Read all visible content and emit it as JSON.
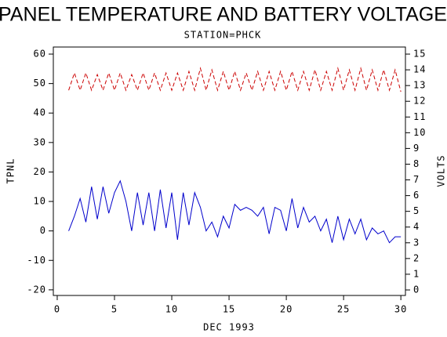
{
  "chart_data": {
    "type": "line",
    "title": "PANEL TEMPERATURE AND BATTERY VOLTAGE",
    "subtitle": "STATION=PHCK",
    "x_label": "DEC 1993",
    "y_label": "TPNL",
    "y2_label": "VOLTS",
    "x": [
      1,
      1.5,
      2,
      2.5,
      3,
      3.5,
      4,
      4.5,
      5,
      5.5,
      6,
      6.5,
      7,
      7.5,
      8,
      8.5,
      9,
      9.5,
      10,
      10.5,
      11,
      11.5,
      12,
      12.5,
      13,
      13.5,
      14,
      14.5,
      15,
      15.5,
      16,
      16.5,
      17,
      17.5,
      18,
      18.5,
      19,
      19.5,
      20,
      20.5,
      21,
      21.5,
      22,
      22.5,
      23,
      23.5,
      24,
      24.5,
      25,
      25.5,
      26,
      26.5,
      27,
      27.5,
      28,
      28.5,
      29,
      29.5,
      30
    ],
    "series": [
      {
        "name": "TPNL",
        "color": "#0000cc",
        "axis": "y",
        "dashed": false,
        "values": [
          0,
          5,
          11,
          3,
          15,
          4,
          15,
          6,
          13,
          17,
          10,
          0,
          13,
          2,
          13,
          0,
          14,
          1,
          13,
          -3,
          13,
          2,
          13,
          8,
          0,
          3,
          -2,
          5,
          1,
          9,
          7,
          8,
          7,
          5,
          8,
          -1,
          8,
          7,
          0,
          11,
          1,
          8,
          3,
          5,
          0,
          4,
          -4,
          5,
          -3,
          4,
          -1,
          4,
          -3,
          1,
          -1,
          0,
          -4,
          -2,
          -2
        ]
      },
      {
        "name": "VOLTS",
        "color": "#cc0000",
        "axis": "y2",
        "dashed": true,
        "values": [
          12.7,
          13.8,
          12.7,
          13.8,
          12.7,
          13.7,
          12.7,
          13.8,
          12.7,
          13.8,
          12.7,
          13.7,
          12.7,
          13.8,
          12.7,
          13.8,
          12.7,
          13.8,
          12.7,
          13.8,
          12.7,
          13.9,
          12.7,
          14.1,
          12.7,
          14.0,
          12.7,
          13.9,
          12.7,
          13.9,
          12.7,
          13.8,
          12.7,
          13.9,
          12.7,
          13.9,
          12.7,
          13.9,
          12.7,
          13.9,
          12.7,
          13.9,
          12.7,
          14.0,
          12.7,
          13.9,
          12.7,
          14.1,
          12.7,
          14.0,
          12.7,
          14.1,
          12.7,
          14.0,
          12.7,
          14.0,
          12.7,
          14.0,
          12.6
        ]
      }
    ],
    "xlim": [
      -0.34,
      30.4
    ],
    "xticks": [
      0,
      5,
      10,
      15,
      20,
      25,
      30
    ],
    "ylim": [
      -21.9,
      62.4
    ],
    "yticks": [
      -20,
      -10,
      0,
      10,
      20,
      30,
      40,
      50,
      60
    ],
    "y2lim": [
      -0.35,
      15.45
    ],
    "y2ticks": [
      0,
      1,
      2,
      3,
      4,
      5,
      6,
      7,
      8,
      9,
      10,
      11,
      12,
      13,
      14,
      15
    ]
  }
}
